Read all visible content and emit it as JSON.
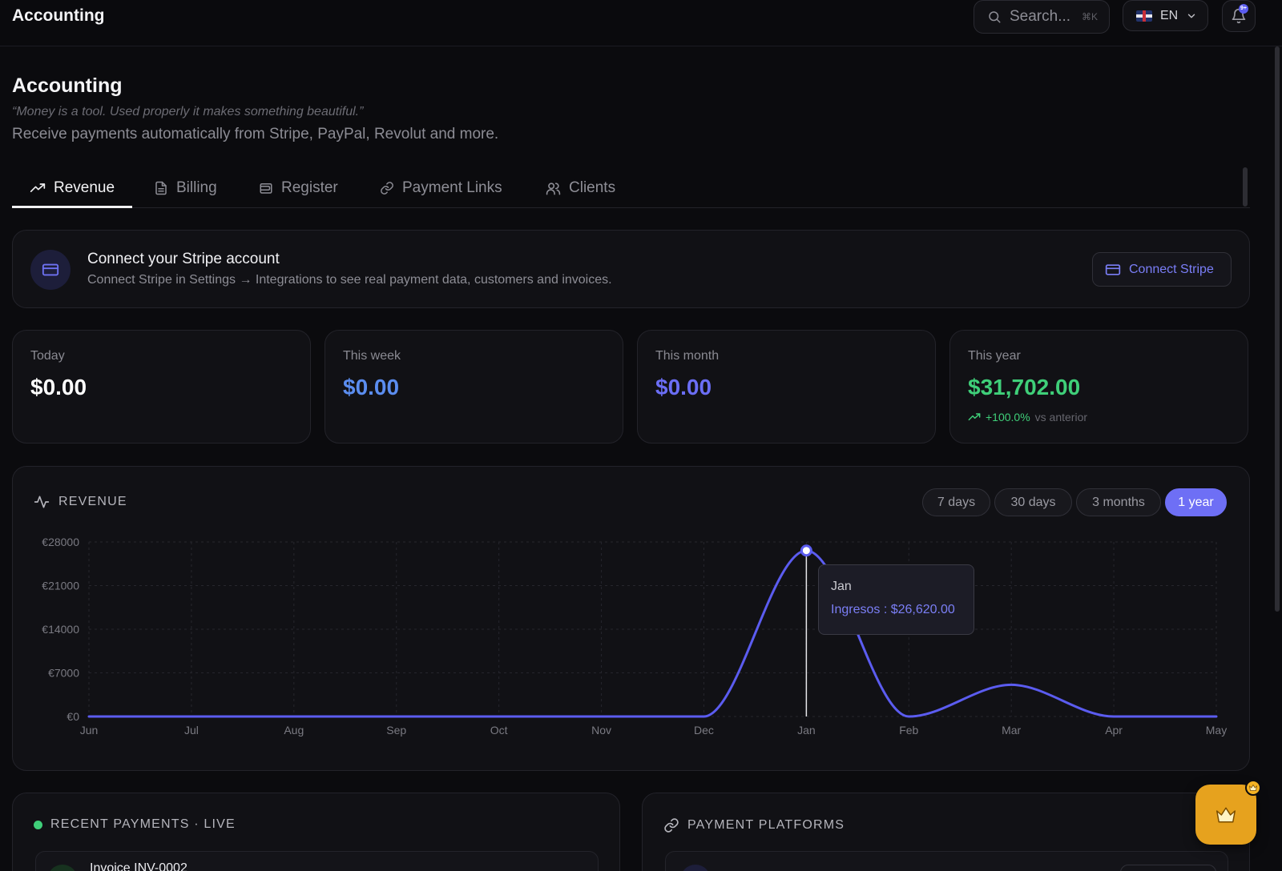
{
  "app": {
    "title": "Accounting"
  },
  "topbar": {
    "search_placeholder": "Search...",
    "search_shortcut": "⌘K",
    "language": "EN",
    "notification_badge": "9+"
  },
  "header": {
    "title": "Accounting",
    "quote": "“Money is a tool. Used properly it makes something beautiful.”",
    "subtitle": "Receive payments automatically from Stripe, PayPal, Revolut and more."
  },
  "tabs": [
    {
      "label": "Revenue",
      "icon": "trending-up-icon",
      "active": true
    },
    {
      "label": "Billing",
      "icon": "file-text-icon",
      "active": false
    },
    {
      "label": "Register",
      "icon": "wallet-icon",
      "active": false
    },
    {
      "label": "Payment Links",
      "icon": "link-icon",
      "active": false
    },
    {
      "label": "Clients",
      "icon": "users-icon",
      "active": false
    }
  ],
  "stripe_banner": {
    "title": "Connect your Stripe account",
    "description": "Connect Stripe in Settings → Integrations to see real payment data, customers and invoices.",
    "button_label": "Connect Stripe"
  },
  "stats": [
    {
      "label": "Today",
      "value": "$0.00",
      "color": "#ffffff"
    },
    {
      "label": "This week",
      "value": "$0.00",
      "color": "#5b8def"
    },
    {
      "label": "This month",
      "value": "$0.00",
      "color": "#6b6ef5"
    },
    {
      "label": "This year",
      "value": "$31,702.00",
      "color": "#3fcf79",
      "change": "+100.0%",
      "change_suffix": "vs anterior"
    }
  ],
  "revenue": {
    "heading": "REVENUE",
    "ranges": [
      {
        "label": "7 days",
        "active": false
      },
      {
        "label": "30 days",
        "active": false
      },
      {
        "label": "3 months",
        "active": false
      },
      {
        "label": "1 year",
        "active": true
      }
    ],
    "tooltip": {
      "label": "Jan",
      "value": "Ingresos : $26,620.00"
    }
  },
  "chart_data": {
    "type": "line",
    "categories": [
      "Jun",
      "Jul",
      "Aug",
      "Sep",
      "Oct",
      "Nov",
      "Dec",
      "Jan",
      "Feb",
      "Mar",
      "Apr",
      "May"
    ],
    "series": [
      {
        "name": "Ingresos",
        "values": [
          0,
          0,
          0,
          0,
          0,
          0,
          0,
          26620,
          0,
          5082,
          0,
          0
        ]
      }
    ],
    "y_ticks": [
      "€0",
      "€7000",
      "€14000",
      "€21000",
      "€28000"
    ],
    "ylim": [
      0,
      28000
    ],
    "grid": true,
    "color": "#5b5cf0"
  },
  "recent_payments": {
    "heading": "RECENT PAYMENTS · LIVE",
    "first_item": "Invoice INV-0002"
  },
  "payment_platforms": {
    "heading": "PAYMENT PLATFORMS"
  },
  "fab": {
    "icon": "crown-icon"
  }
}
